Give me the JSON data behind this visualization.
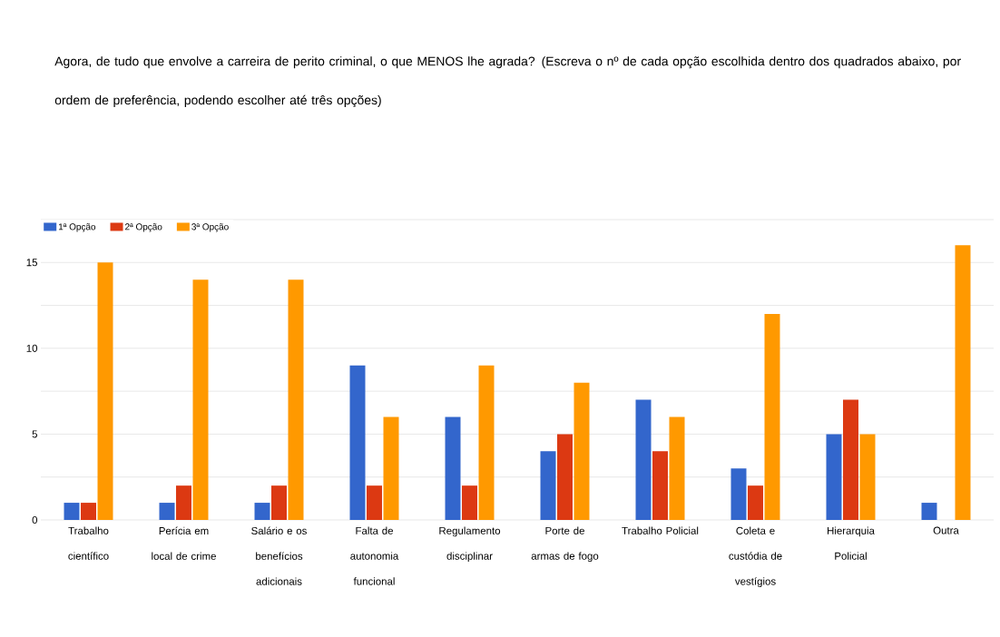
{
  "chart_data": {
    "type": "bar",
    "title": "Agora, de tudo que envolve a carreira de perito criminal, o que MENOS lhe agrada? (Escreva o nº de cada opção escolhida dentro dos quadrados abaixo, por ordem de preferência, podendo escolher até três opções)",
    "categories": [
      "Trabalho científico",
      "Perícia em local de crime",
      "Salário e os benefícios adicionais",
      "Falta de autonomia funcional",
      "Regulamento disciplinar",
      "Porte de armas de fogo",
      "Trabalho Policial",
      "Coleta e custódia de vestígios",
      "Hierarquia Policial",
      "Outra"
    ],
    "series": [
      {
        "name": "1ª Opção",
        "color": "#3366cc",
        "values": [
          1,
          1,
          1,
          9,
          6,
          4,
          7,
          3,
          5,
          1
        ]
      },
      {
        "name": "2ª Opção",
        "color": "#dc3912",
        "values": [
          1,
          2,
          2,
          2,
          2,
          5,
          4,
          2,
          7,
          0
        ]
      },
      {
        "name": "3ª Opção",
        "color": "#ff9900",
        "values": [
          15,
          14,
          14,
          6,
          9,
          8,
          6,
          12,
          5,
          16
        ]
      }
    ],
    "ylim": [
      0,
      17.5
    ],
    "yticks": [
      0,
      {
        "value": 2.5,
        "label": null
      },
      5,
      {
        "value": 7.5,
        "label": null
      },
      10,
      {
        "value": 12.5,
        "label": null
      },
      15,
      {
        "value": 17.5,
        "label": null
      }
    ],
    "grid": "y",
    "legend": "top left"
  }
}
